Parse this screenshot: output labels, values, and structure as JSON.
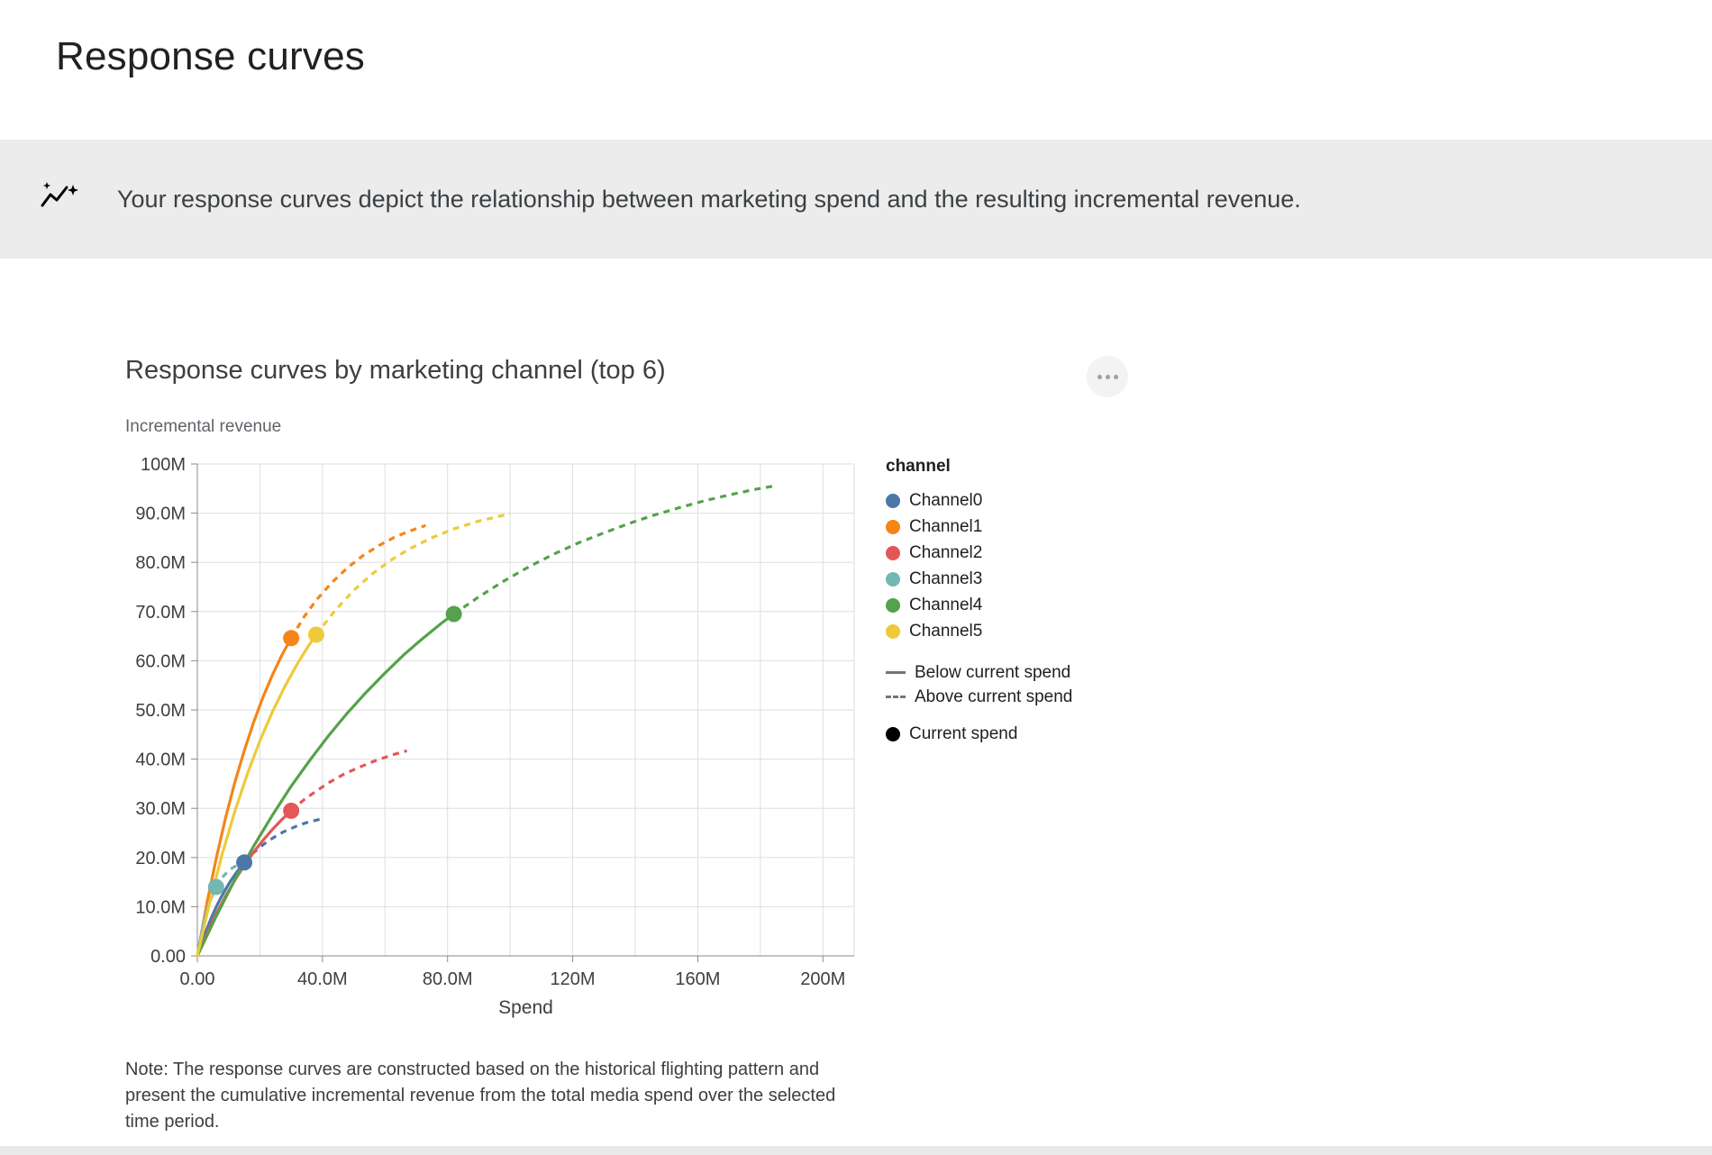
{
  "page": {
    "title": "Response curves",
    "banner_text": "Your response curves depict the relationship between marketing spend and the resulting incremental revenue.",
    "note": "Note: The response curves are constructed based on the historical flighting pattern and present the cumulative incremental revenue from the total media spend over the selected time period."
  },
  "icons": {
    "banner": "insights-icon",
    "chart_menu": "more-options-icon"
  },
  "chart_data": {
    "type": "line",
    "title": "Response curves by marketing channel (top 6)",
    "xlabel": "Spend",
    "ylabel": "Incremental revenue",
    "units": "values in millions (M); axis labels use SI formatting",
    "xlim": [
      0,
      210
    ],
    "ylim": [
      0,
      100
    ],
    "grid": true,
    "x_grid_step": 20,
    "y_grid_step": 10,
    "x_ticks": [
      {
        "v": 0,
        "label": "0.00"
      },
      {
        "v": 40,
        "label": "40.0M"
      },
      {
        "v": 80,
        "label": "80.0M"
      },
      {
        "v": 120,
        "label": "120M"
      },
      {
        "v": 160,
        "label": "160M"
      },
      {
        "v": 200,
        "label": "200M"
      }
    ],
    "y_ticks": [
      {
        "v": 0,
        "label": "0.00"
      },
      {
        "v": 10,
        "label": "10.0M"
      },
      {
        "v": 20,
        "label": "20.0M"
      },
      {
        "v": 30,
        "label": "30.0M"
      },
      {
        "v": 40,
        "label": "40.0M"
      },
      {
        "v": 50,
        "label": "50.0M"
      },
      {
        "v": 60,
        "label": "60.0M"
      },
      {
        "v": 70,
        "label": "70.0M"
      },
      {
        "v": 80,
        "label": "80.0M"
      },
      {
        "v": 90,
        "label": "90.0M"
      },
      {
        "v": 100,
        "label": "100M"
      }
    ],
    "legend": {
      "title": "channel",
      "position": "right",
      "style_entries": [
        {
          "label": "Below current spend",
          "style": "solid"
        },
        {
          "label": "Above current spend",
          "style": "dashed"
        },
        {
          "label": "Current spend",
          "style": "dot"
        }
      ]
    },
    "series": [
      {
        "name": "Channel0",
        "color": "#4C78A8",
        "current_spend": [
          15,
          19
        ],
        "below_current": [
          [
            0,
            0
          ],
          [
            1.5,
            2.9
          ],
          [
            3,
            5.4
          ],
          [
            4.5,
            7.8
          ],
          [
            6,
            9.9
          ],
          [
            7.5,
            11.8
          ],
          [
            9,
            13.5
          ],
          [
            10.5,
            15.1
          ],
          [
            12,
            16.5
          ],
          [
            13.5,
            17.8
          ],
          [
            15,
            19
          ]
        ],
        "above_current": [
          [
            15,
            19
          ],
          [
            17.5,
            20.7
          ],
          [
            20,
            22.1
          ],
          [
            22.5,
            23.3
          ],
          [
            25,
            24.3
          ],
          [
            27.5,
            25.2
          ],
          [
            30,
            25.9
          ],
          [
            32.5,
            26.6
          ],
          [
            35,
            27.1
          ],
          [
            37.5,
            27.5
          ],
          [
            40,
            27.9
          ]
        ]
      },
      {
        "name": "Channel1",
        "color": "#F58518",
        "current_spend": [
          30,
          64.6
        ],
        "below_current": [
          [
            0,
            0
          ],
          [
            3,
            10.5
          ],
          [
            6,
            19.7
          ],
          [
            9,
            28
          ],
          [
            12,
            35.3
          ],
          [
            15,
            41.7
          ],
          [
            18,
            47.5
          ],
          [
            21,
            52.6
          ],
          [
            24,
            57.1
          ],
          [
            27,
            61.1
          ],
          [
            30,
            64.6
          ]
        ],
        "above_current": [
          [
            30,
            64.6
          ],
          [
            34,
            68.8
          ],
          [
            38,
            72.3
          ],
          [
            43,
            75.9
          ],
          [
            48,
            78.9
          ],
          [
            53,
            81.4
          ],
          [
            58,
            83.4
          ],
          [
            63,
            85.1
          ],
          [
            68,
            86.4
          ],
          [
            73,
            87.5
          ]
        ]
      },
      {
        "name": "Channel2",
        "color": "#E45756",
        "current_spend": [
          30,
          29.5
        ],
        "below_current": [
          [
            0,
            0
          ],
          [
            3,
            4.4
          ],
          [
            6,
            8.5
          ],
          [
            9,
            12.1
          ],
          [
            12,
            15.4
          ],
          [
            15,
            18.4
          ],
          [
            18,
            21.1
          ],
          [
            21,
            23.5
          ],
          [
            24,
            25.7
          ],
          [
            27,
            27.7
          ],
          [
            30,
            29.5
          ]
        ],
        "above_current": [
          [
            30,
            29.5
          ],
          [
            34,
            31.7
          ],
          [
            38,
            33.5
          ],
          [
            42,
            35.2
          ],
          [
            47,
            37
          ],
          [
            52,
            38.4
          ],
          [
            57,
            39.7
          ],
          [
            62,
            40.8
          ],
          [
            67,
            41.7
          ]
        ]
      },
      {
        "name": "Channel3",
        "color": "#72B7B2",
        "current_spend": [
          6,
          14
        ],
        "below_current": [
          [
            0,
            0
          ],
          [
            1,
            3.6
          ],
          [
            2,
            6.6
          ],
          [
            3,
            9
          ],
          [
            4,
            11
          ],
          [
            5,
            12.6
          ],
          [
            6,
            14
          ]
        ],
        "above_current": [
          [
            6,
            14
          ],
          [
            7.75,
            15.8
          ],
          [
            9.5,
            17
          ],
          [
            11.25,
            17.9
          ],
          [
            13,
            18.5
          ]
        ]
      },
      {
        "name": "Channel4",
        "color": "#54A24B",
        "current_spend": [
          82,
          69.5
        ],
        "below_current": [
          [
            0,
            0
          ],
          [
            6,
            8
          ],
          [
            12,
            15.5
          ],
          [
            18,
            22.3
          ],
          [
            24,
            28.6
          ],
          [
            30,
            34.5
          ],
          [
            36,
            39.8
          ],
          [
            42,
            44.8
          ],
          [
            48,
            49.4
          ],
          [
            54,
            53.6
          ],
          [
            60,
            57.5
          ],
          [
            66,
            61.2
          ],
          [
            72,
            64.5
          ],
          [
            78,
            67.6
          ],
          [
            82,
            69.5
          ]
        ],
        "above_current": [
          [
            82,
            69.5
          ],
          [
            90,
            73
          ],
          [
            98,
            76.2
          ],
          [
            106,
            79.1
          ],
          [
            114,
            81.7
          ],
          [
            122,
            84
          ],
          [
            130,
            86
          ],
          [
            138,
            87.9
          ],
          [
            146,
            89.6
          ],
          [
            154,
            91.1
          ],
          [
            162,
            92.5
          ],
          [
            170,
            93.7
          ],
          [
            178,
            94.8
          ],
          [
            185,
            95.6
          ]
        ]
      },
      {
        "name": "Channel5",
        "color": "#EECA3B",
        "current_spend": [
          38,
          65.3
        ],
        "below_current": [
          [
            0,
            0
          ],
          [
            4,
            11
          ],
          [
            8,
            20.8
          ],
          [
            12,
            29.4
          ],
          [
            16,
            37
          ],
          [
            20,
            43.7
          ],
          [
            24,
            49.6
          ],
          [
            28,
            54.8
          ],
          [
            32,
            59.4
          ],
          [
            35,
            62.5
          ],
          [
            38,
            65.3
          ]
        ],
        "above_current": [
          [
            38,
            65.3
          ],
          [
            44,
            70.2
          ],
          [
            50,
            74.3
          ],
          [
            56,
            77.7
          ],
          [
            62,
            80.5
          ],
          [
            68,
            82.8
          ],
          [
            75,
            85
          ],
          [
            82,
            86.8
          ],
          [
            90,
            88.4
          ],
          [
            100,
            89.9
          ]
        ]
      }
    ]
  }
}
